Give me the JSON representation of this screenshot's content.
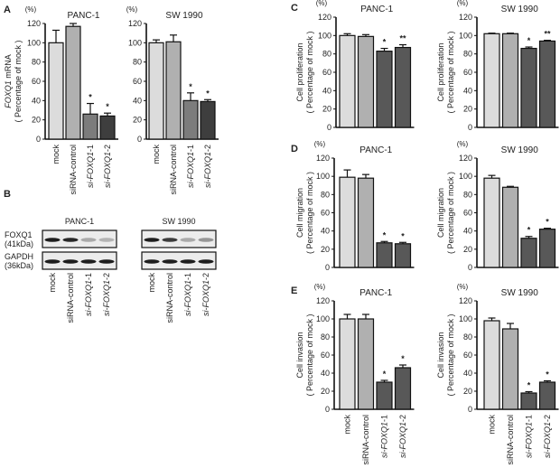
{
  "panel_labels": [
    "A",
    "B",
    "C",
    "D",
    "E"
  ],
  "unit_label": "(%)",
  "categories": [
    "mock",
    "siRNA-control",
    "si-FOXQ1-1",
    "si-FOXQ1-2"
  ],
  "colors": {
    "mock": "#dcdcdc",
    "control": "#b0b0b0",
    "si1_A": "#7c7c7c",
    "si2_A": "#3e3e3e",
    "si_dark": "#585858",
    "axis": "#111111"
  },
  "chart_data": [
    {
      "id": "A-PANC-1",
      "panel": "A",
      "type": "bar",
      "title": "PANC-1",
      "ylabel": [
        "FOXQ1 mRNA",
        "( Percentage of mock )"
      ],
      "ylim": [
        0,
        120
      ],
      "yticks": [
        0,
        20,
        40,
        60,
        80,
        100,
        120
      ],
      "values": [
        100,
        117,
        26,
        24
      ],
      "errors": [
        13,
        3,
        11,
        3
      ],
      "significance": [
        "",
        "",
        "*",
        "*"
      ]
    },
    {
      "id": "A-SW1990",
      "panel": "A",
      "type": "bar",
      "title": "SW 1990",
      "ylabel": [],
      "ylim": [
        0,
        120
      ],
      "yticks": [
        0,
        20,
        40,
        60,
        80,
        100,
        120
      ],
      "values": [
        100,
        101,
        40,
        39
      ],
      "errors": [
        3,
        7,
        8,
        2
      ],
      "significance": [
        "",
        "",
        "*",
        "*"
      ]
    },
    {
      "id": "C-PANC-1",
      "panel": "C",
      "type": "bar",
      "title": "PANC-1",
      "ylabel": [
        "Cell proliferation",
        "( Percentage of mock )"
      ],
      "ylim": [
        0,
        120
      ],
      "yticks": [
        0,
        20,
        40,
        60,
        80,
        100,
        120
      ],
      "values": [
        100,
        99,
        83,
        87
      ],
      "errors": [
        2,
        2,
        3,
        3
      ],
      "significance": [
        "",
        "",
        "*",
        "**"
      ]
    },
    {
      "id": "C-SW1990",
      "panel": "C",
      "type": "bar",
      "title": "SW 1990",
      "ylabel": [
        "Cell proliferation",
        "( Percentage of mock )"
      ],
      "ylim": [
        0,
        120
      ],
      "yticks": [
        0,
        20,
        40,
        60,
        80,
        100,
        120
      ],
      "values": [
        102,
        102,
        86,
        94
      ],
      "errors": [
        0.6,
        0.6,
        1.5,
        0.8
      ],
      "significance": [
        "",
        "",
        "*",
        "**"
      ]
    },
    {
      "id": "D-PANC-1",
      "panel": "D",
      "type": "bar",
      "title": "PANC-1",
      "ylabel": [
        "Cell migration",
        "( Percentage of mock )"
      ],
      "ylim": [
        0,
        120
      ],
      "yticks": [
        0,
        20,
        40,
        60,
        80,
        100,
        120
      ],
      "values": [
        99,
        98,
        27,
        26
      ],
      "errors": [
        8,
        4,
        1.5,
        1.5
      ],
      "significance": [
        "",
        "",
        "*",
        "*"
      ]
    },
    {
      "id": "D-SW1990",
      "panel": "D",
      "type": "bar",
      "title": "SW 1990",
      "ylabel": [
        "Cell migration",
        "( Percentage of mock )"
      ],
      "ylim": [
        0,
        120
      ],
      "yticks": [
        0,
        20,
        40,
        60,
        80,
        100,
        120
      ],
      "values": [
        98,
        88,
        32,
        42
      ],
      "errors": [
        3,
        1,
        2,
        1
      ],
      "significance": [
        "",
        "",
        "*",
        "*"
      ]
    },
    {
      "id": "E-PANC-1",
      "panel": "E",
      "type": "bar",
      "title": "PANC-1",
      "ylabel": [
        "Cell invasion",
        "( Percentage of mock )"
      ],
      "ylim": [
        0,
        120
      ],
      "yticks": [
        0,
        20,
        40,
        60,
        80,
        100,
        120
      ],
      "values": [
        100,
        100,
        30,
        46
      ],
      "errors": [
        5,
        5,
        2,
        3
      ],
      "significance": [
        "",
        "",
        "*",
        "*"
      ]
    },
    {
      "id": "E-SW1990",
      "panel": "E",
      "type": "bar",
      "title": "SW 1990",
      "ylabel": [
        "Cell invasion",
        "( Percentage of mock )"
      ],
      "ylim": [
        0,
        120
      ],
      "yticks": [
        0,
        20,
        40,
        60,
        80,
        100,
        120
      ],
      "values": [
        98,
        89,
        18,
        30
      ],
      "errors": [
        3,
        6,
        1.5,
        1.5
      ],
      "significance": [
        "",
        "",
        "*",
        "*"
      ]
    }
  ],
  "western_blot": {
    "panel": "B",
    "rows": [
      {
        "label": "FOXQ1",
        "size": "(41kDa)"
      },
      {
        "label": "GAPDH",
        "size": "(36kDa)"
      }
    ],
    "blots": [
      {
        "title": "PANC-1",
        "band_intensity": {
          "FOXQ1": [
            1,
            0.95,
            0.3,
            0.25
          ],
          "GAPDH": [
            1,
            1,
            1,
            1
          ]
        }
      },
      {
        "title": "SW 1990",
        "band_intensity": {
          "FOXQ1": [
            1,
            0.85,
            0.3,
            0.4
          ],
          "GAPDH": [
            1,
            1,
            1,
            1
          ]
        }
      }
    ]
  }
}
